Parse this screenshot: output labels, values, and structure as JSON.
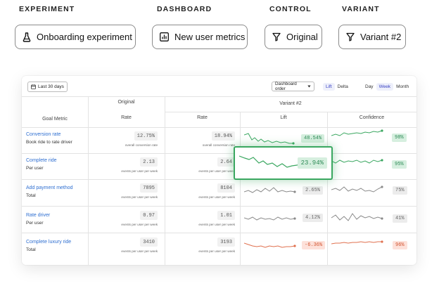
{
  "selectors": {
    "experiment": {
      "label": "EXPERIMENT",
      "value": "Onboarding experiment",
      "icon": "flask-icon"
    },
    "dashboard": {
      "label": "DASHBOARD",
      "value": "New user metrics",
      "icon": "bar-chart-icon"
    },
    "control": {
      "label": "CONTROL",
      "value": "Original",
      "icon": "filter-icon"
    },
    "variant": {
      "label": "VARIANT",
      "value": "Variant #2",
      "icon": "filter-icon"
    }
  },
  "toolbar": {
    "date_range": "Last 30 days",
    "order": "Dashboard order",
    "view_modes": [
      "Lift",
      "Delta"
    ],
    "active_view": "Lift",
    "periods": [
      "Day",
      "Week",
      "Month"
    ],
    "active_period": "Week"
  },
  "table": {
    "header_original": "Original",
    "header_variant": "Variant #2",
    "col_goal": "Goal Metric",
    "col_rate": "Rate",
    "col_rate_variant": "Rate",
    "col_lift": "Lift",
    "col_confidence": "Confidence",
    "rows": [
      {
        "name": "Conversion rate",
        "sub": "Book ride to rate driver",
        "orig": "12.75%",
        "orig_caption": "overall conversion rate",
        "var": "18.94%",
        "var_caption": "overall conversion rate",
        "lift": "48.54%",
        "lift_status": "positive",
        "conf": "98%",
        "conf_status": "positive"
      },
      {
        "name": "Complete ride",
        "sub": "Per user",
        "orig": "2.13",
        "orig_caption": "events per user per week",
        "var": "2.64",
        "var_caption": "events per user per week",
        "lift": "23.94%",
        "lift_status": "positive",
        "conf": "95%",
        "conf_status": "positive"
      },
      {
        "name": "Add payment method",
        "sub": "Total",
        "orig": "7895",
        "orig_caption": "events per user per week",
        "var": "8104",
        "var_caption": "events per user per week",
        "lift": "2.65%",
        "lift_status": "neutral",
        "conf": "75%",
        "conf_status": "neutral"
      },
      {
        "name": "Rate driver",
        "sub": "Per user",
        "orig": "0.97",
        "orig_caption": "events per user per week",
        "var": "1.01",
        "var_caption": "events per user per week",
        "lift": "4.12%",
        "lift_status": "neutral",
        "conf": "41%",
        "conf_status": "neutral"
      },
      {
        "name": "Complete luxury ride",
        "sub": "Total",
        "orig": "3410",
        "orig_caption": "events per user per week",
        "var": "3193",
        "var_caption": "events per user per week",
        "lift": "-6.36%",
        "lift_status": "negative",
        "conf": "96%",
        "conf_status": "negative"
      }
    ]
  },
  "colors": {
    "positive": "#3aa760",
    "neutral": "#8a8a8a",
    "negative": "#e0704e",
    "link": "#2f6fd1",
    "accent": "#3a43c4"
  }
}
